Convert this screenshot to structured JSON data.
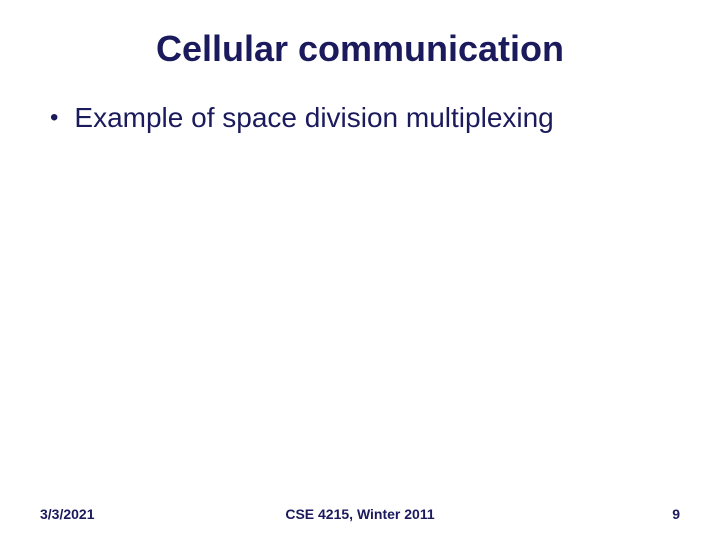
{
  "title": "Cellular communication",
  "title_color": "#1a1a5c",
  "title_fontsize": 36,
  "bullets": [
    {
      "text": "Example of space division multiplexing"
    }
  ],
  "bullet_color": "#1a1a5c",
  "bullet_fontsize": 28,
  "footer": {
    "date": "3/3/2021",
    "course": "CSE 4215, Winter 2011",
    "page_number": "9",
    "color": "#1a1a5c",
    "fontsize": 14
  },
  "background_color": "#ffffff"
}
